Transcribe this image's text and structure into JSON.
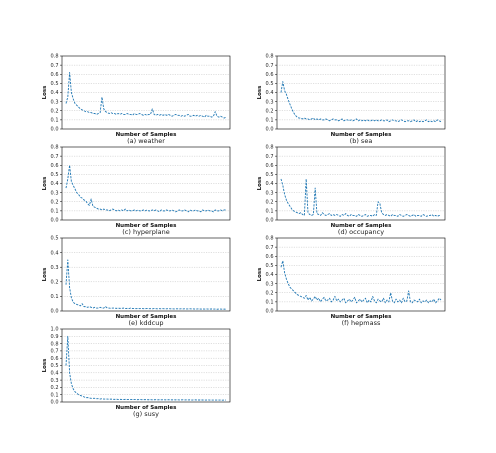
{
  "chart_data": [
    {
      "type": "line",
      "caption": "(a) weather",
      "xlabel": "Number of Samples",
      "ylabel": "Loss",
      "ylim": [
        0,
        0.8
      ],
      "yticks": [
        "0.0",
        "0.1",
        "0.2",
        "0.3",
        "0.4",
        "0.5",
        "0.6",
        "0.7",
        "0.8"
      ],
      "grid": true,
      "series": [
        {
          "color": "#1f77b4",
          "style": "dashed",
          "values": [
            0.28,
            0.35,
            0.62,
            0.4,
            0.33,
            0.28,
            0.26,
            0.24,
            0.22,
            0.21,
            0.2,
            0.19,
            0.19,
            0.18,
            0.18,
            0.17,
            0.17,
            0.16,
            0.17,
            0.18,
            0.35,
            0.22,
            0.19,
            0.18,
            0.17,
            0.18,
            0.17,
            0.17,
            0.16,
            0.17,
            0.16,
            0.17,
            0.16,
            0.16,
            0.17,
            0.16,
            0.16,
            0.15,
            0.17,
            0.16,
            0.16,
            0.17,
            0.16,
            0.15,
            0.16,
            0.15,
            0.16,
            0.16,
            0.22,
            0.16,
            0.15,
            0.16,
            0.15,
            0.16,
            0.15,
            0.16,
            0.15,
            0.16,
            0.15,
            0.14,
            0.15,
            0.16,
            0.15,
            0.15,
            0.14,
            0.15,
            0.14,
            0.15,
            0.16,
            0.14,
            0.14,
            0.15,
            0.14,
            0.15,
            0.14,
            0.15,
            0.14,
            0.13,
            0.15,
            0.14,
            0.14,
            0.13,
            0.14,
            0.19,
            0.14,
            0.13,
            0.14,
            0.13,
            0.12,
            0.13
          ]
        }
      ]
    },
    {
      "type": "line",
      "caption": "(b) sea",
      "xlabel": "Number of Samples",
      "ylabel": "Loss",
      "ylim": [
        0,
        0.8
      ],
      "yticks": [
        "0.0",
        "0.1",
        "0.2",
        "0.3",
        "0.4",
        "0.5",
        "0.6",
        "0.7",
        "0.8"
      ],
      "grid": true,
      "series": [
        {
          "color": "#1f77b4",
          "style": "dashed",
          "values": [
            0.4,
            0.52,
            0.42,
            0.38,
            0.32,
            0.27,
            0.22,
            0.18,
            0.15,
            0.13,
            0.12,
            0.12,
            0.11,
            0.12,
            0.11,
            0.11,
            0.1,
            0.11,
            0.12,
            0.1,
            0.11,
            0.1,
            0.11,
            0.1,
            0.1,
            0.11,
            0.1,
            0.09,
            0.1,
            0.11,
            0.1,
            0.1,
            0.09,
            0.1,
            0.11,
            0.09,
            0.1,
            0.1,
            0.09,
            0.1,
            0.09,
            0.1,
            0.11,
            0.09,
            0.1,
            0.09,
            0.1,
            0.09,
            0.1,
            0.09,
            0.09,
            0.1,
            0.09,
            0.1,
            0.09,
            0.09,
            0.1,
            0.09,
            0.09,
            0.1,
            0.08,
            0.09,
            0.1,
            0.09,
            0.09,
            0.08,
            0.09,
            0.1,
            0.09,
            0.08,
            0.09,
            0.09,
            0.08,
            0.09,
            0.1,
            0.08,
            0.09,
            0.08,
            0.09,
            0.08,
            0.09,
            0.1,
            0.08,
            0.09,
            0.08,
            0.09,
            0.08,
            0.1,
            0.09,
            0.08
          ]
        }
      ]
    },
    {
      "type": "line",
      "caption": "(c) hyperplane",
      "xlabel": "Number of Samples",
      "ylabel": "Loss",
      "ylim": [
        0,
        0.8
      ],
      "yticks": [
        "0.0",
        "0.1",
        "0.2",
        "0.3",
        "0.4",
        "0.5",
        "0.6",
        "0.7",
        "0.8"
      ],
      "grid": true,
      "series": [
        {
          "color": "#1f77b4",
          "style": "dashed",
          "values": [
            0.35,
            0.45,
            0.6,
            0.42,
            0.38,
            0.34,
            0.3,
            0.28,
            0.25,
            0.24,
            0.22,
            0.21,
            0.18,
            0.16,
            0.23,
            0.15,
            0.14,
            0.13,
            0.12,
            0.12,
            0.11,
            0.12,
            0.11,
            0.11,
            0.1,
            0.11,
            0.12,
            0.11,
            0.1,
            0.11,
            0.1,
            0.11,
            0.1,
            0.12,
            0.1,
            0.11,
            0.1,
            0.1,
            0.11,
            0.1,
            0.11,
            0.1,
            0.1,
            0.11,
            0.1,
            0.11,
            0.1,
            0.1,
            0.11,
            0.1,
            0.11,
            0.1,
            0.09,
            0.11,
            0.1,
            0.1,
            0.11,
            0.1,
            0.1,
            0.11,
            0.1,
            0.09,
            0.1,
            0.11,
            0.1,
            0.1,
            0.11,
            0.1,
            0.09,
            0.11,
            0.1,
            0.1,
            0.11,
            0.1,
            0.1,
            0.09,
            0.11,
            0.1,
            0.1,
            0.11,
            0.1,
            0.1,
            0.09,
            0.11,
            0.1,
            0.1,
            0.11,
            0.1,
            0.11,
            0.11
          ]
        }
      ]
    },
    {
      "type": "line",
      "caption": "(d) occupancy",
      "xlabel": "Number of Samples",
      "ylabel": "Loss",
      "ylim": [
        0,
        0.8
      ],
      "yticks": [
        "0.0",
        "0.1",
        "0.2",
        "0.3",
        "0.4",
        "0.5",
        "0.6",
        "0.7",
        "0.8"
      ],
      "grid": true,
      "series": [
        {
          "color": "#1f77b4",
          "style": "dashed",
          "values": [
            0.45,
            0.38,
            0.28,
            0.22,
            0.18,
            0.15,
            0.12,
            0.1,
            0.09,
            0.08,
            0.07,
            0.08,
            0.06,
            0.05,
            0.45,
            0.08,
            0.06,
            0.05,
            0.06,
            0.35,
            0.07,
            0.06,
            0.05,
            0.08,
            0.06,
            0.05,
            0.06,
            0.07,
            0.05,
            0.06,
            0.05,
            0.06,
            0.05,
            0.04,
            0.06,
            0.05,
            0.07,
            0.05,
            0.04,
            0.06,
            0.05,
            0.05,
            0.04,
            0.06,
            0.05,
            0.04,
            0.05,
            0.06,
            0.04,
            0.05,
            0.05,
            0.04,
            0.06,
            0.05,
            0.2,
            0.18,
            0.08,
            0.06,
            0.05,
            0.06,
            0.05,
            0.04,
            0.06,
            0.05,
            0.05,
            0.04,
            0.06,
            0.05,
            0.04,
            0.05,
            0.06,
            0.05,
            0.04,
            0.05,
            0.06,
            0.04,
            0.05,
            0.05,
            0.04,
            0.06,
            0.05,
            0.04,
            0.05,
            0.05,
            0.06,
            0.04,
            0.05,
            0.04,
            0.05,
            0.05
          ]
        }
      ]
    },
    {
      "type": "line",
      "caption": "(e) kddcup",
      "xlabel": "Number of Samples",
      "ylabel": "Loss",
      "ylim": [
        0,
        0.5
      ],
      "yticks": [
        "0.0",
        "0.1",
        "0.2",
        "0.3",
        "0.4",
        "0.5"
      ],
      "grid": true,
      "series": [
        {
          "color": "#1f77b4",
          "style": "dashed",
          "values": [
            0.18,
            0.35,
            0.16,
            0.09,
            0.06,
            0.05,
            0.045,
            0.04,
            0.035,
            0.05,
            0.03,
            0.03,
            0.025,
            0.03,
            0.025,
            0.02,
            0.025,
            0.02,
            0.02,
            0.025,
            0.02,
            0.02,
            0.03,
            0.02,
            0.02,
            0.018,
            0.02,
            0.02,
            0.018,
            0.02,
            0.018,
            0.018,
            0.02,
            0.017,
            0.018,
            0.017,
            0.02,
            0.017,
            0.017,
            0.016,
            0.018,
            0.016,
            0.017,
            0.016,
            0.016,
            0.017,
            0.016,
            0.016,
            0.015,
            0.017,
            0.016,
            0.015,
            0.016,
            0.015,
            0.016,
            0.015,
            0.015,
            0.016,
            0.015,
            0.015,
            0.014,
            0.015,
            0.015,
            0.014,
            0.015,
            0.014,
            0.015,
            0.014,
            0.014,
            0.015,
            0.014,
            0.014,
            0.013,
            0.014,
            0.014,
            0.013,
            0.014,
            0.013,
            0.014,
            0.013,
            0.013,
            0.014,
            0.013,
            0.013,
            0.012,
            0.013,
            0.013,
            0.012,
            0.013,
            0.012
          ]
        }
      ]
    },
    {
      "type": "line",
      "caption": "(f) hepmass",
      "xlabel": "Number of Samples",
      "ylabel": "Loss",
      "ylim": [
        0,
        0.8
      ],
      "yticks": [
        "0.0",
        "0.1",
        "0.2",
        "0.3",
        "0.4",
        "0.5",
        "0.6",
        "0.7",
        "0.8"
      ],
      "grid": true,
      "series": [
        {
          "color": "#1f77b4",
          "style": "dashed",
          "values": [
            0.48,
            0.55,
            0.42,
            0.35,
            0.3,
            0.26,
            0.24,
            0.22,
            0.2,
            0.18,
            0.17,
            0.16,
            0.15,
            0.14,
            0.17,
            0.12,
            0.15,
            0.11,
            0.13,
            0.16,
            0.12,
            0.14,
            0.1,
            0.13,
            0.15,
            0.11,
            0.12,
            0.14,
            0.1,
            0.12,
            0.16,
            0.11,
            0.13,
            0.1,
            0.12,
            0.14,
            0.09,
            0.11,
            0.13,
            0.1,
            0.12,
            0.15,
            0.09,
            0.11,
            0.13,
            0.1,
            0.12,
            0.14,
            0.09,
            0.12,
            0.1,
            0.16,
            0.11,
            0.09,
            0.13,
            0.11,
            0.1,
            0.14,
            0.09,
            0.12,
            0.1,
            0.2,
            0.11,
            0.09,
            0.13,
            0.1,
            0.12,
            0.09,
            0.14,
            0.1,
            0.11,
            0.22,
            0.1,
            0.09,
            0.12,
            0.11,
            0.1,
            0.13,
            0.09,
            0.11,
            0.1,
            0.12,
            0.09,
            0.11,
            0.1,
            0.13,
            0.09,
            0.11,
            0.14,
            0.12
          ]
        }
      ]
    },
    {
      "type": "line",
      "caption": "(g) susy",
      "xlabel": "Number of Samples",
      "ylabel": "Loss",
      "ylim": [
        0,
        1.0
      ],
      "yticks": [
        "0.0",
        "0.1",
        "0.2",
        "0.3",
        "0.4",
        "0.5",
        "0.6",
        "0.7",
        "0.8",
        "0.9",
        "1.0"
      ],
      "grid": true,
      "series": [
        {
          "color": "#1f77b4",
          "style": "dashed",
          "values": [
            0.5,
            0.9,
            0.4,
            0.25,
            0.18,
            0.14,
            0.12,
            0.1,
            0.09,
            0.08,
            0.07,
            0.06,
            0.06,
            0.055,
            0.05,
            0.05,
            0.05,
            0.045,
            0.045,
            0.04,
            0.045,
            0.04,
            0.04,
            0.04,
            0.038,
            0.04,
            0.037,
            0.036,
            0.038,
            0.035,
            0.036,
            0.035,
            0.034,
            0.036,
            0.034,
            0.033,
            0.035,
            0.033,
            0.034,
            0.033,
            0.032,
            0.034,
            0.032,
            0.031,
            0.033,
            0.032,
            0.031,
            0.032,
            0.03,
            0.031,
            0.032,
            0.03,
            0.031,
            0.03,
            0.031,
            0.03,
            0.029,
            0.031,
            0.03,
            0.029,
            0.03,
            0.029,
            0.03,
            0.028,
            0.029,
            0.03,
            0.028,
            0.029,
            0.028,
            0.029,
            0.027,
            0.028,
            0.029,
            0.027,
            0.028,
            0.027,
            0.028,
            0.026,
            0.027,
            0.028,
            0.026,
            0.027,
            0.026,
            0.027,
            0.026,
            0.026,
            0.027,
            0.025,
            0.026,
            0.026
          ]
        }
      ]
    }
  ]
}
